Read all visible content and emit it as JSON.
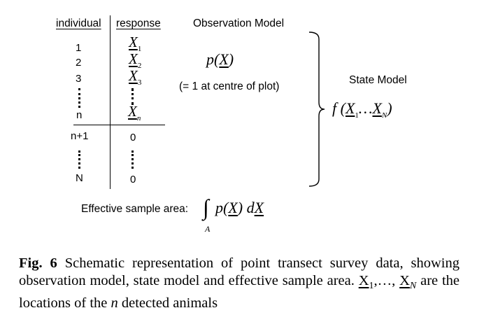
{
  "table": {
    "col_individual": "individual",
    "col_response": "response",
    "rows_detected": [
      {
        "individual": "1",
        "response_var": "X",
        "response_sub": "1"
      },
      {
        "individual": "2",
        "response_var": "X",
        "response_sub": "2"
      },
      {
        "individual": "3",
        "response_var": "X",
        "response_sub": "3"
      }
    ],
    "row_n": {
      "individual": "n",
      "response_var": "X",
      "response_sub": "n"
    },
    "row_n1": {
      "individual": "n+1",
      "response": "0"
    },
    "row_N": {
      "individual": "N",
      "response": "0"
    }
  },
  "observation_model": {
    "title": "Observation Model",
    "formula_f": "p(",
    "formula_var": "X",
    "formula_close": ")",
    "note": "(= 1 at centre of plot)"
  },
  "state_model": {
    "title": "State Model",
    "formula_open": "f (",
    "var1": "X",
    "sub1": "1",
    "dots": "…",
    "var2": "X",
    "sub2": "N",
    "formula_close": ")"
  },
  "effective_area": {
    "label": "Effective sample area:",
    "integral": "∫",
    "integral_sub": "A",
    "p_open": "p(",
    "var": "X",
    "p_close": ")",
    "d": "d",
    "dvar": "X"
  },
  "caption": {
    "fig_label": "Fig. 6",
    "text1": " Schematic representation of point transect survey data, showing observation model, state model and effective sample area. ",
    "var1": "X",
    "sub1": "1",
    "mid": ",…, ",
    "var2": "X",
    "sub2": "N",
    "text2": " are the locations of the ",
    "n": "n",
    "text3": " detected animals"
  }
}
